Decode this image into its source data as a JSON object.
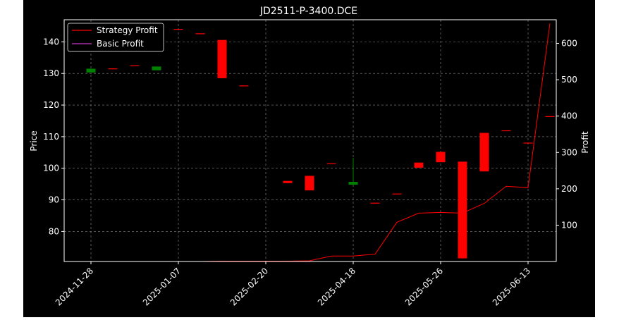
{
  "chart_data": {
    "type": "candlestick+line",
    "title": "JD2511-P-3400.DCE",
    "ylabel_left": "Price",
    "ylabel_right": "Profit",
    "xlabel": "",
    "x_tick_labels": [
      "2024-11-28",
      "2025-01-07",
      "2025-02-20",
      "2025-04-18",
      "2025-05-26",
      "2025-06-13"
    ],
    "y_left_ticks": [
      80,
      90,
      100,
      110,
      120,
      130,
      140
    ],
    "y_right_ticks": [
      100,
      200,
      300,
      400,
      500,
      600
    ],
    "y_left_range": [
      70.5,
      147
    ],
    "y_right_range": [
      0,
      665
    ],
    "grid": true,
    "legend_position": "top-left",
    "legend": [
      {
        "name": "Strategy Profit",
        "color": "#ff0000"
      },
      {
        "name": "Basic Profit",
        "color": "#cc33cc"
      }
    ],
    "candles": [
      {
        "open": 131.5,
        "close": 130.3,
        "high": 131.5,
        "low": 130.3
      },
      {
        "open": 131.6,
        "close": 131.6,
        "high": 131.6,
        "low": 131.6
      },
      {
        "open": 132.6,
        "close": 132.6,
        "high": 132.6,
        "low": 132.6
      },
      {
        "open": 132.2,
        "close": 131.0,
        "high": 132.2,
        "low": 131.0
      },
      {
        "open": 144.1,
        "close": 144.1,
        "high": 144.1,
        "low": 144.1
      },
      {
        "open": 142.7,
        "close": 142.7,
        "high": 142.7,
        "low": 142.7
      },
      {
        "open": 128.5,
        "close": 140.6,
        "high": 140.6,
        "low": 128.5
      },
      {
        "open": 126.2,
        "close": 126.2,
        "high": 126.2,
        "low": 126.2
      },
      {
        "open": null,
        "close": null,
        "high": null,
        "low": null
      },
      {
        "open": 95.3,
        "close": 96.0,
        "high": 96.0,
        "low": 95.3
      },
      {
        "open": 93.0,
        "close": 97.6,
        "high": 97.6,
        "low": 93.0
      },
      {
        "open": 101.6,
        "close": 101.6,
        "high": 101.6,
        "low": 101.6
      },
      {
        "open": 95.7,
        "close": 94.8,
        "high": 103.3,
        "low": 94.8
      },
      {
        "open": 89.1,
        "close": 89.1,
        "high": 89.1,
        "low": 89.1
      },
      {
        "open": 92.0,
        "close": 92.0,
        "high": 92.0,
        "low": 92.0
      },
      {
        "open": 100.2,
        "close": 101.8,
        "high": 101.8,
        "low": 100.2
      },
      {
        "open": 101.9,
        "close": 105.2,
        "high": 105.2,
        "low": 101.9
      },
      {
        "open": 71.5,
        "close": 102.1,
        "high": 102.1,
        "low": 71.5
      },
      {
        "open": 99.0,
        "close": 111.2,
        "high": 111.2,
        "low": 99.0
      },
      {
        "open": 112.0,
        "close": 112.0,
        "high": 112.0,
        "low": 112.0
      },
      {
        "open": 108.1,
        "close": 108.1,
        "high": 108.1,
        "low": 108.1
      },
      {
        "open": 116.5,
        "close": 116.5,
        "high": 116.5,
        "low": 116.5
      }
    ],
    "series": [
      {
        "name": "Strategy Profit",
        "axis": "right",
        "color": "#ff0000",
        "values": [
          0,
          0,
          0,
          0,
          0,
          0,
          1,
          1,
          1,
          1,
          2,
          15,
          15,
          20,
          108,
          133,
          135,
          133,
          160,
          207,
          203,
          655
        ]
      },
      {
        "name": "Basic Profit",
        "axis": "right",
        "color": "#cc33cc",
        "values": [
          0,
          0,
          0,
          0,
          0,
          0,
          0,
          0,
          0,
          0,
          0,
          0,
          0,
          0,
          0,
          0,
          0,
          0,
          0,
          0,
          0,
          0
        ]
      }
    ]
  }
}
